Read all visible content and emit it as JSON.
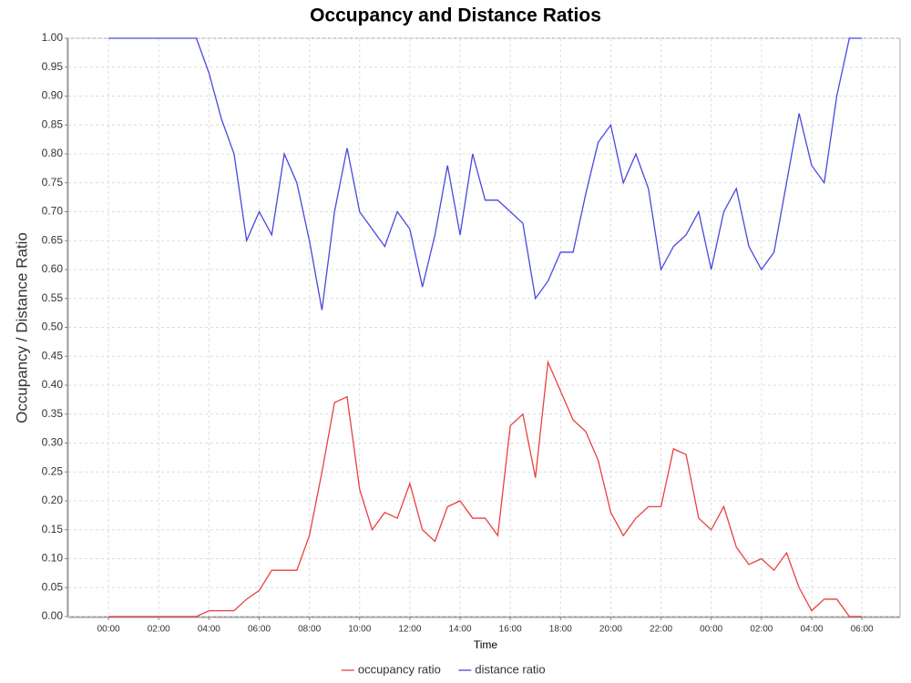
{
  "chart_data": {
    "type": "line",
    "title": "Occupancy and Distance Ratios",
    "xlabel": "Time",
    "ylabel": "Occupancy / Distance Ratio",
    "x": [
      0,
      0.5,
      1,
      1.5,
      2,
      2.5,
      3,
      3.5,
      4,
      4.5,
      5,
      5.5,
      6,
      6.5,
      7,
      7.5,
      8,
      8.5,
      9,
      9.5,
      10,
      10.5,
      11,
      11.5,
      12,
      12.5,
      13,
      13.5,
      14,
      14.5,
      15,
      15.5,
      16,
      16.5,
      17,
      17.5,
      18,
      18.5,
      19,
      19.5,
      20,
      20.5,
      21,
      21.5,
      22,
      22.5,
      23,
      23.5,
      24,
      24.5,
      25,
      25.5,
      26,
      26.5,
      27,
      27.5,
      28,
      28.5,
      29,
      29.5,
      30
    ],
    "series": [
      {
        "name": "occupancy ratio",
        "color": "#e84040",
        "values": [
          0,
          0,
          0,
          0,
          0,
          0,
          0,
          0,
          0.01,
          0.01,
          0.01,
          0.03,
          0.045,
          0.08,
          0.08,
          0.08,
          0.14,
          0.25,
          0.37,
          0.38,
          0.22,
          0.15,
          0.18,
          0.17,
          0.23,
          0.15,
          0.13,
          0.19,
          0.2,
          0.17,
          0.17,
          0.14,
          0.33,
          0.35,
          0.24,
          0.44,
          0.39,
          0.34,
          0.32,
          0.27,
          0.18,
          0.14,
          0.17,
          0.19,
          0.19,
          0.29,
          0.28,
          0.17,
          0.15,
          0.19,
          0.12,
          0.09,
          0.1,
          0.08,
          0.11,
          0.05,
          0.01,
          0.03,
          0.03,
          0,
          0
        ]
      },
      {
        "name": "distance ratio",
        "color": "#4848e0",
        "values": [
          1,
          1,
          1,
          1,
          1,
          1,
          1,
          1,
          0.94,
          0.86,
          0.8,
          0.65,
          0.7,
          0.66,
          0.8,
          0.75,
          0.65,
          0.53,
          0.7,
          0.81,
          0.7,
          0.67,
          0.64,
          0.7,
          0.67,
          0.57,
          0.66,
          0.78,
          0.66,
          0.8,
          0.72,
          0.72,
          0.7,
          0.68,
          0.55,
          0.58,
          0.63,
          0.63,
          0.73,
          0.82,
          0.85,
          0.75,
          0.8,
          0.74,
          0.6,
          0.64,
          0.66,
          0.7,
          0.6,
          0.7,
          0.74,
          0.64,
          0.6,
          0.63,
          0.75,
          0.87,
          0.78,
          0.75,
          0.9,
          1,
          1
        ]
      }
    ],
    "xlim": [
      -1.6,
      31.52
    ],
    "xticks": [
      {
        "value": 0,
        "label": "00:00"
      },
      {
        "value": 2,
        "label": "02:00"
      },
      {
        "value": 4,
        "label": "04:00"
      },
      {
        "value": 6,
        "label": "06:00"
      },
      {
        "value": 8,
        "label": "08:00"
      },
      {
        "value": 10,
        "label": "10:00"
      },
      {
        "value": 12,
        "label": "12:00"
      },
      {
        "value": 14,
        "label": "14:00"
      },
      {
        "value": 16,
        "label": "16:00"
      },
      {
        "value": 18,
        "label": "18:00"
      },
      {
        "value": 20,
        "label": "20:00"
      },
      {
        "value": 22,
        "label": "22:00"
      },
      {
        "value": 24,
        "label": "00:00"
      },
      {
        "value": 26,
        "label": "02:00"
      },
      {
        "value": 28,
        "label": "04:00"
      },
      {
        "value": 30,
        "label": "06:00"
      }
    ],
    "ylim": [
      0,
      1
    ],
    "yticks": [
      {
        "value": 0,
        "label": "0.00"
      },
      {
        "value": 0.05,
        "label": "0.05"
      },
      {
        "value": 0.1,
        "label": "0.10"
      },
      {
        "value": 0.15,
        "label": "0.15"
      },
      {
        "value": 0.2,
        "label": "0.20"
      },
      {
        "value": 0.25,
        "label": "0.25"
      },
      {
        "value": 0.3,
        "label": "0.30"
      },
      {
        "value": 0.35,
        "label": "0.35"
      },
      {
        "value": 0.4,
        "label": "0.40"
      },
      {
        "value": 0.45,
        "label": "0.45"
      },
      {
        "value": 0.5,
        "label": "0.50"
      },
      {
        "value": 0.55,
        "label": "0.55"
      },
      {
        "value": 0.6,
        "label": "0.60"
      },
      {
        "value": 0.65,
        "label": "0.65"
      },
      {
        "value": 0.7,
        "label": "0.70"
      },
      {
        "value": 0.75,
        "label": "0.75"
      },
      {
        "value": 0.8,
        "label": "0.80"
      },
      {
        "value": 0.85,
        "label": "0.85"
      },
      {
        "value": 0.9,
        "label": "0.90"
      },
      {
        "value": 0.95,
        "label": "0.95"
      },
      {
        "value": 1,
        "label": "1.00"
      }
    ],
    "grid": true,
    "legend": "bottom"
  }
}
